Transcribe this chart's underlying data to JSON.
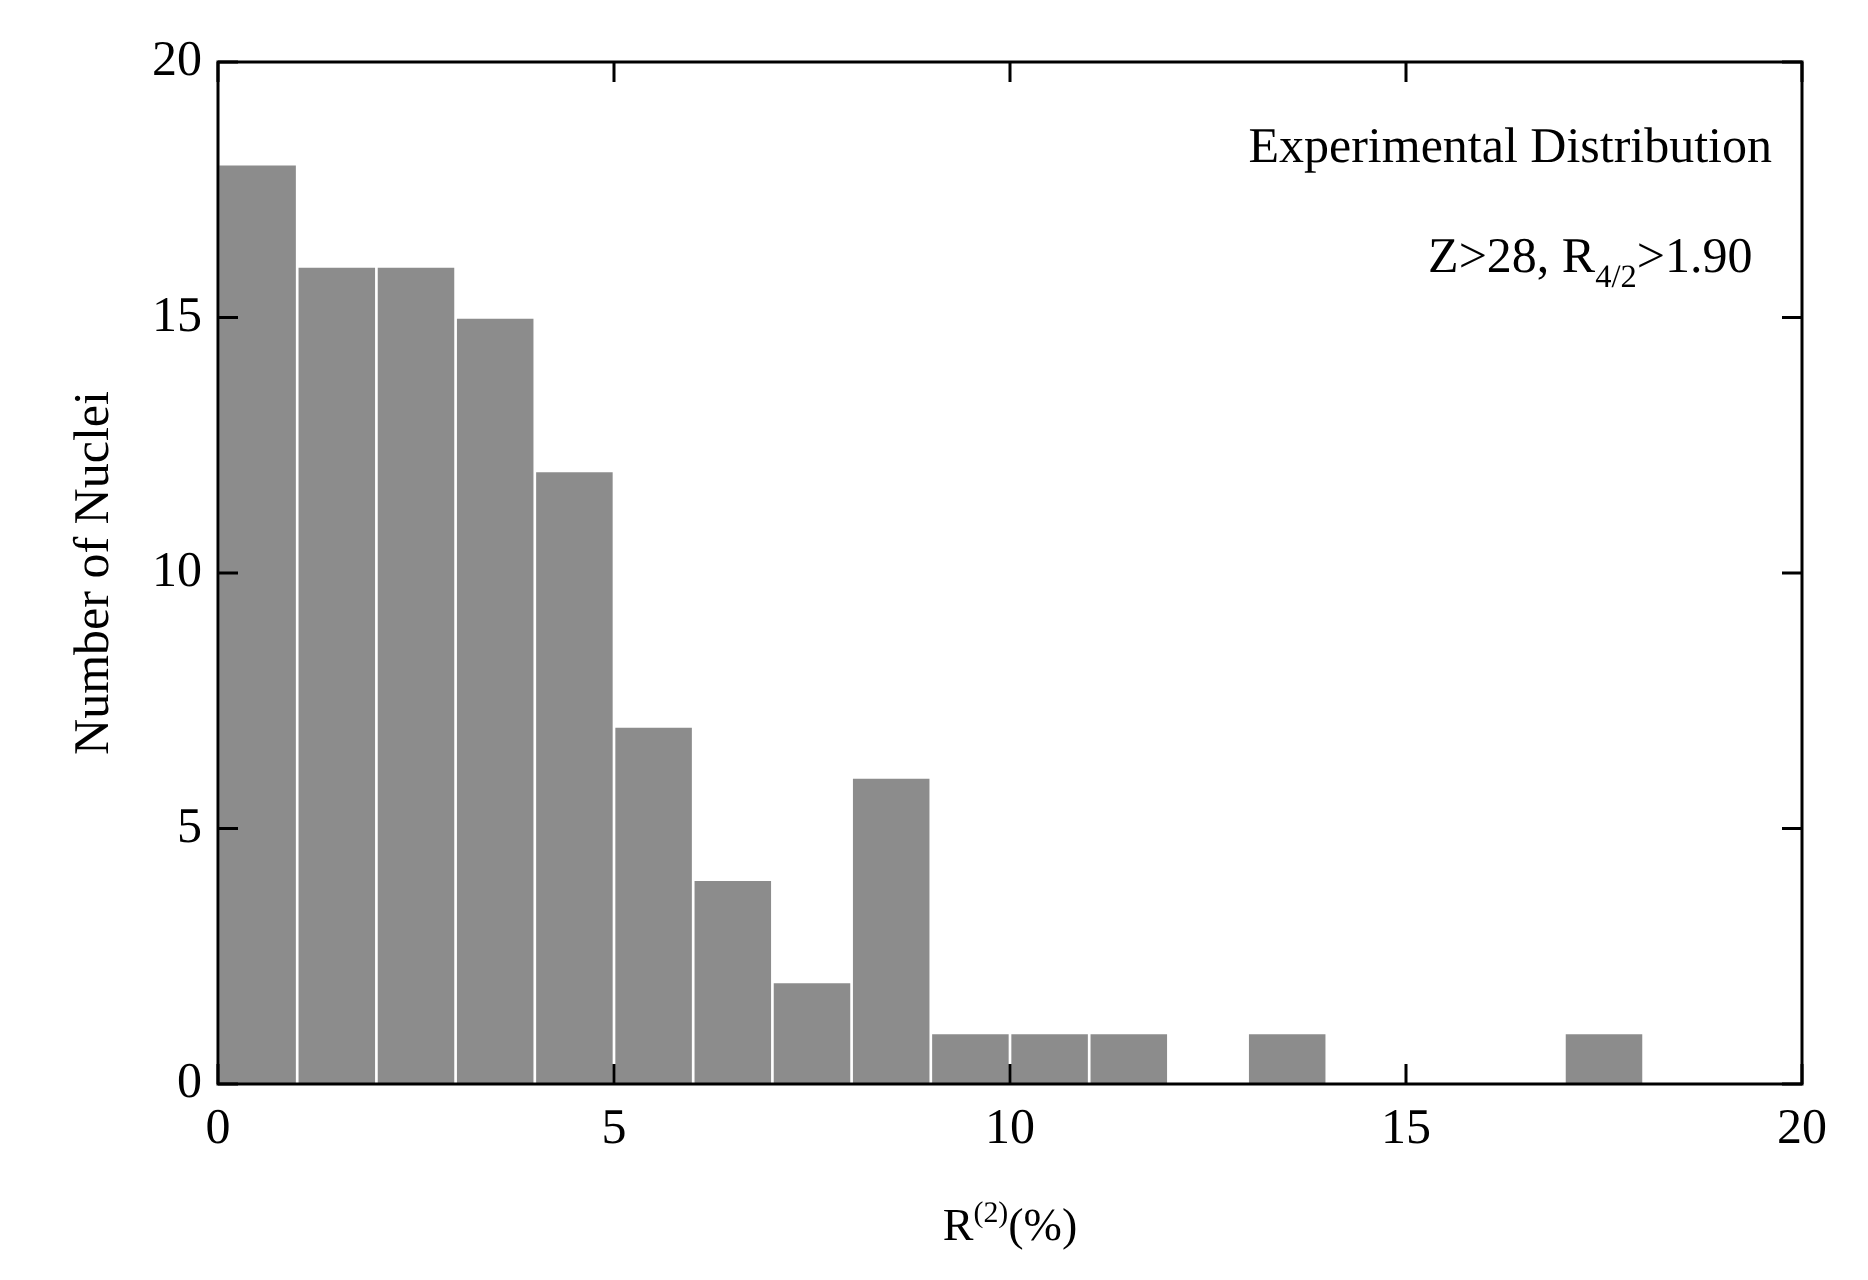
{
  "chart_data": {
    "type": "histogram",
    "title": "Experimental Distribution",
    "subtitle": "Z>28, R$_{4/2}$>1.90",
    "xlabel": "R$^{(2)}$(%)",
    "ylabel": "Number of Nuclei",
    "bins": [
      0,
      1,
      2,
      3,
      4,
      5,
      6,
      7,
      8,
      9,
      10,
      11,
      12,
      13,
      14,
      15,
      16,
      17,
      18
    ],
    "values": [
      18,
      16,
      16,
      15,
      12,
      7,
      4,
      2,
      6,
      1,
      1,
      1,
      0,
      1,
      0,
      0,
      0,
      1
    ],
    "color": "#8c8c8c",
    "xlim": [
      0,
      20
    ],
    "xticks": [
      0,
      5,
      10,
      15,
      20
    ],
    "ylim": [
      0,
      20
    ],
    "yticks": [
      0,
      5,
      10,
      15,
      20
    ],
    "grid": false,
    "legend": false
  }
}
